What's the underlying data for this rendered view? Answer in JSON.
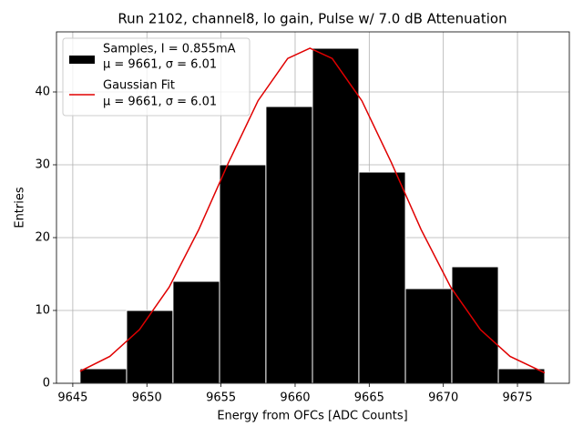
{
  "chart_data": {
    "type": "histogram",
    "title": "Run 2102, channel8, lo gain, Pulse w/ 7.0 dB Attenuation",
    "xlabel": "Energy from OFCs [ADC Counts]",
    "ylabel": "Entries",
    "bins": [
      9645.49,
      9648.63,
      9651.76,
      9654.9,
      9658.03,
      9661.17,
      9664.3,
      9667.44,
      9670.57,
      9673.71,
      9676.84
    ],
    "counts": [
      2,
      10,
      14,
      30,
      38,
      46,
      29,
      13,
      16,
      2
    ],
    "color": "#000000",
    "edgecolor": "#ffffff",
    "name": [
      "Samples, I = 0.855mA",
      "μ = 9661, σ = 6.01"
    ],
    "overlay": {
      "type": "line",
      "name": [
        "Gaussian Fit",
        "μ = 9661, σ = 6.01"
      ],
      "color": "#e00000",
      "x": [
        9645.49,
        9647.5,
        9649.5,
        9651.5,
        9653.5,
        9655.5,
        9657.5,
        9659.5,
        9661,
        9662.5,
        9664.5,
        9666.5,
        9668.5,
        9670.5,
        9672.5,
        9674.5,
        9676.84
      ],
      "values": [
        1.65,
        3.69,
        7.37,
        13.19,
        21.1,
        30.27,
        38.8,
        44.6,
        46,
        44.6,
        38.8,
        30.27,
        21.1,
        13.19,
        7.37,
        3.69,
        1.43
      ]
    },
    "xlim": [
      9643.9,
      9678.5
    ],
    "ylim": [
      0,
      48.25
    ],
    "xticks": [
      9645,
      9650,
      9655,
      9660,
      9665,
      9670,
      9675
    ],
    "yticks": [
      0,
      10,
      20,
      30,
      40
    ],
    "grid": true,
    "legend": "upper left"
  }
}
